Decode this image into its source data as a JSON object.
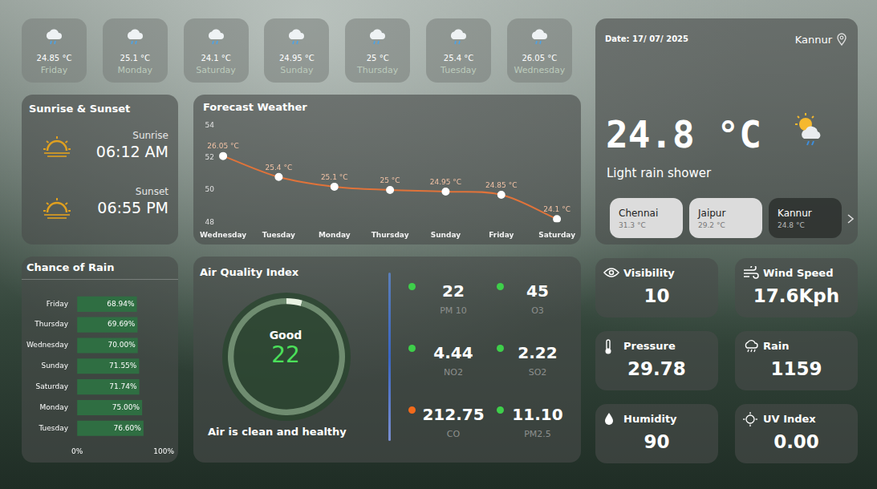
{
  "daily_tiles": [
    {
      "temp": "24.85 °C",
      "day": "Friday"
    },
    {
      "temp": "25.1 °C",
      "day": "Monday"
    },
    {
      "temp": "24.1 °C",
      "day": "Saturday"
    },
    {
      "temp": "24.95 °C",
      "day": "Sunday"
    },
    {
      "temp": "25 °C",
      "day": "Thursday"
    },
    {
      "temp": "25.4 °C",
      "day": "Tuesday"
    },
    {
      "temp": "26.05 °C",
      "day": "Wednesday"
    }
  ],
  "sun": {
    "title": "Sunrise & Sunset",
    "sunrise_label": "Sunrise",
    "sunrise": "06:12 AM",
    "sunset_label": "Sunset",
    "sunset": "06:55 PM"
  },
  "chart_data": [
    {
      "type": "line",
      "title": "Forecast Weather",
      "categories": [
        "Wednesday",
        "Tuesday",
        "Monday",
        "Thursday",
        "Sunday",
        "Friday",
        "Saturday"
      ],
      "values": [
        52.1,
        50.8,
        50.2,
        50,
        49.9,
        49.7,
        48.2
      ],
      "annotations": [
        "26.05 °C",
        "25.4 °C",
        "25.1 °C",
        "25 °C",
        "24.95 °C",
        "24.85 °C",
        "24.1 °C"
      ],
      "ylim": [
        48,
        54
      ],
      "yticks": [
        48,
        50,
        52,
        54
      ],
      "grid": false,
      "color": "#e0733a",
      "marker": "circle"
    },
    {
      "type": "bar",
      "title": "Chance of Rain",
      "orientation": "horizontal",
      "categories": [
        "Friday",
        "Thursday",
        "Wednesday",
        "Sunday",
        "Saturday",
        "Monday",
        "Tuesday"
      ],
      "values": [
        68.94,
        69.69,
        70.0,
        71.55,
        71.74,
        75.0,
        76.6
      ],
      "value_labels": [
        "68.94%",
        "69.69%",
        "70.00%",
        "71.55%",
        "71.74%",
        "75.00%",
        "76.60%"
      ],
      "data_labels": true,
      "xlim": [
        0,
        100
      ],
      "xticks": [
        {
          "value": 0,
          "label": "0%"
        },
        {
          "value": 100,
          "label": "100%"
        }
      ],
      "grid": false,
      "color": "#2f6e42"
    }
  ],
  "air_quality": {
    "title": "Air Quality Index",
    "status": "Good",
    "value": 22,
    "range": [
      0,
      500
    ],
    "message": "Air is clean and healthy",
    "pollutants": [
      {
        "name": "PM 10",
        "value": "22",
        "color": "#3ecf4a"
      },
      {
        "name": "O3",
        "value": "45",
        "color": "#3ecf4a"
      },
      {
        "name": "NO2",
        "value": "4.44",
        "color": "#3ecf4a"
      },
      {
        "name": "SO2",
        "value": "2.22",
        "color": "#3ecf4a"
      },
      {
        "name": "CO",
        "value": "212.75",
        "color": "#f26a1b"
      },
      {
        "name": "PM2.5",
        "value": "11.10",
        "color": "#3ecf4a"
      }
    ]
  },
  "current": {
    "date": "Date: 17/ 07/ 2025",
    "city": "Kannur",
    "temp": "24.8 °C",
    "condition": "Light rain shower",
    "cities": [
      {
        "name": "Chennai",
        "temp": "31.3 °C"
      },
      {
        "name": "Jaipur",
        "temp": "29.2 °C"
      },
      {
        "name": "Kannur",
        "temp": "24.8 °C"
      }
    ]
  },
  "metrics": [
    {
      "label": "Visibility",
      "value": "10"
    },
    {
      "label": "Wind Speed",
      "value": "17.6Kph"
    },
    {
      "label": "Pressure",
      "value": "29.78"
    },
    {
      "label": "Rain",
      "value": "1159"
    },
    {
      "label": "Humidity",
      "value": "90"
    },
    {
      "label": "UV Index",
      "value": "0.00"
    }
  ]
}
